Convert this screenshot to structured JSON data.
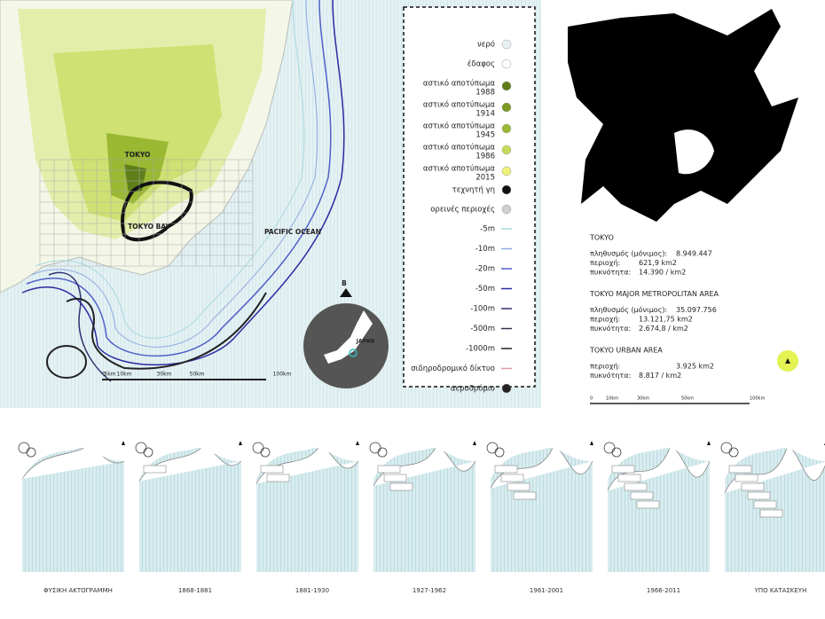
{
  "map": {
    "labels": [
      "TOKYO",
      "TOKYO BAY",
      "PACIFIC OCEAN",
      "JAPAN",
      "B"
    ],
    "scale": [
      "0",
      "5km",
      "10km",
      "30km",
      "50km",
      "100km"
    ]
  },
  "legend": [
    {
      "label": "νερό",
      "color": "#e8f2f4"
    },
    {
      "label": "έδαφος",
      "color": "#ffffff"
    },
    {
      "label": "αστικό αποτύπωμα",
      "year": "1988",
      "color": "#5f7f1a"
    },
    {
      "label": "αστικό αποτύπωμα",
      "year": "1914",
      "color": "#7a9a22"
    },
    {
      "label": "αστικό αποτύπωμα",
      "year": "1945",
      "color": "#9ab832"
    },
    {
      "label": "αστικό αποτύπωμα",
      "year": "1986",
      "color": "#c6dc58"
    },
    {
      "label": "αστικό αποτύπωμα",
      "year": "2015",
      "color": "#eef27a"
    },
    {
      "label": "τεχνητή γη",
      "color": "#111111"
    },
    {
      "label": "ορεινές περιοχές",
      "color": "#cfcfcf"
    },
    {
      "label": "-5m",
      "color": "#a8d8e0"
    },
    {
      "label": "-10m",
      "color": "#8fa8e0"
    },
    {
      "label": "-20m",
      "color": "#5060c8"
    },
    {
      "label": "-50m",
      "color": "#2a2aa0"
    },
    {
      "label": "-100m",
      "color": "#303070"
    },
    {
      "label": "-500m",
      "color": "#303050"
    },
    {
      "label": "-1000m",
      "color": "#222222"
    },
    {
      "label": "σιδηροδρομικό δίκτυο",
      "color": "#d8a0a8"
    },
    {
      "label": "αεροδρόμιο",
      "color": "#222222"
    }
  ],
  "stats": {
    "sections": [
      {
        "title": "TOKYO",
        "rows": [
          [
            "πληθυσμός (μόνιμος):",
            "8.949.447"
          ],
          [
            "περιοχή:",
            "621,9 km2"
          ],
          [
            "πυκνότητα:",
            "14.390 / km2"
          ]
        ]
      },
      {
        "title": "TOKYO MAJOR METROPOLITAN AREA",
        "rows": [
          [
            "πληθυσμός (μόνιμος):",
            "35.097.756"
          ],
          [
            "περιοχή:",
            "13.121,75 km2"
          ],
          [
            "πυκνότητα:",
            "2.674,8 / km2"
          ]
        ]
      },
      {
        "title": "TOKYO URBAN AREA",
        "rows": [
          [
            "περιοχή:",
            "3.925 km2"
          ],
          [
            "πυκνότητα:",
            "8.817 / km2"
          ]
        ]
      }
    ],
    "scale": [
      "0",
      "10km",
      "30km",
      "50km",
      "100km"
    ]
  },
  "timeline": [
    "ΦΥΣΙΚΗ ΑΚΤΟΓΡΑΜΜΗ",
    "1868-1881",
    "1881-1930",
    "1927-1962",
    "1961-2001",
    "1966-2011",
    "ΥΠΟ ΚΑΤΑΣΚΕΥΗ"
  ]
}
